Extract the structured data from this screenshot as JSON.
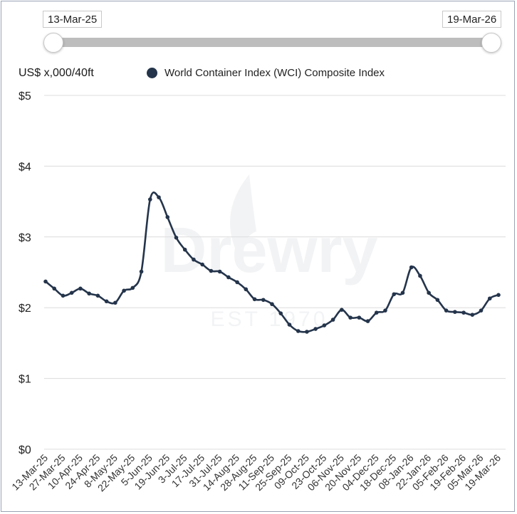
{
  "range": {
    "start": "13-Mar-25",
    "end": "19-Mar-26"
  },
  "unit_label": "US$ x,000/40ft",
  "colors": {
    "line": "#24344b",
    "grid": "#dcdcdc",
    "axis_text": "#333333"
  },
  "chart_data": {
    "type": "line",
    "title": "",
    "xlabel": "",
    "ylabel": "US$ x,000/40ft",
    "ylim": [
      0,
      5
    ],
    "yticks": [
      0,
      1,
      2,
      3,
      4,
      5
    ],
    "ytick_labels": [
      "$0",
      "$1",
      "$2",
      "$3",
      "$4",
      "$5"
    ],
    "x_tick_labels": [
      "13-Mar-25",
      "27-Mar-25",
      "10-Apr-25",
      "24-Apr-25",
      "8-May-25",
      "22-May-25",
      "5-Jun-25",
      "19-Jun-25",
      "3-Jul-25",
      "17-Jul-25",
      "31-Jul-25",
      "14-Aug-25",
      "28-Aug-25",
      "11-Sep-25",
      "25-Sep-25",
      "09-Oct-25",
      "23-Oct-25",
      "06-Nov-25",
      "20-Nov-25",
      "04-Dec-25",
      "18-Dec-25",
      "08-Jan-26",
      "22-Jan-26",
      "05-Feb-26",
      "19-Feb-26",
      "05-Mar-26",
      "19-Mar-26"
    ],
    "legend": "top-center",
    "series": [
      {
        "name": "World Container Index (WCI) Composite Index",
        "values": [
          2.37,
          2.27,
          2.17,
          2.21,
          2.27,
          2.2,
          2.17,
          2.09,
          2.07,
          2.24,
          2.28,
          2.51,
          3.53,
          3.56,
          3.28,
          2.99,
          2.82,
          2.68,
          2.61,
          2.52,
          2.51,
          2.43,
          2.36,
          2.26,
          2.12,
          2.11,
          2.05,
          1.92,
          1.76,
          1.67,
          1.66,
          1.7,
          1.75,
          1.83,
          1.97,
          1.86,
          1.86,
          1.81,
          1.93,
          1.96,
          2.19,
          2.21,
          2.57,
          2.45,
          2.21,
          2.11,
          1.96,
          1.94,
          1.93,
          1.9,
          1.96,
          2.13,
          2.18
        ]
      }
    ]
  }
}
